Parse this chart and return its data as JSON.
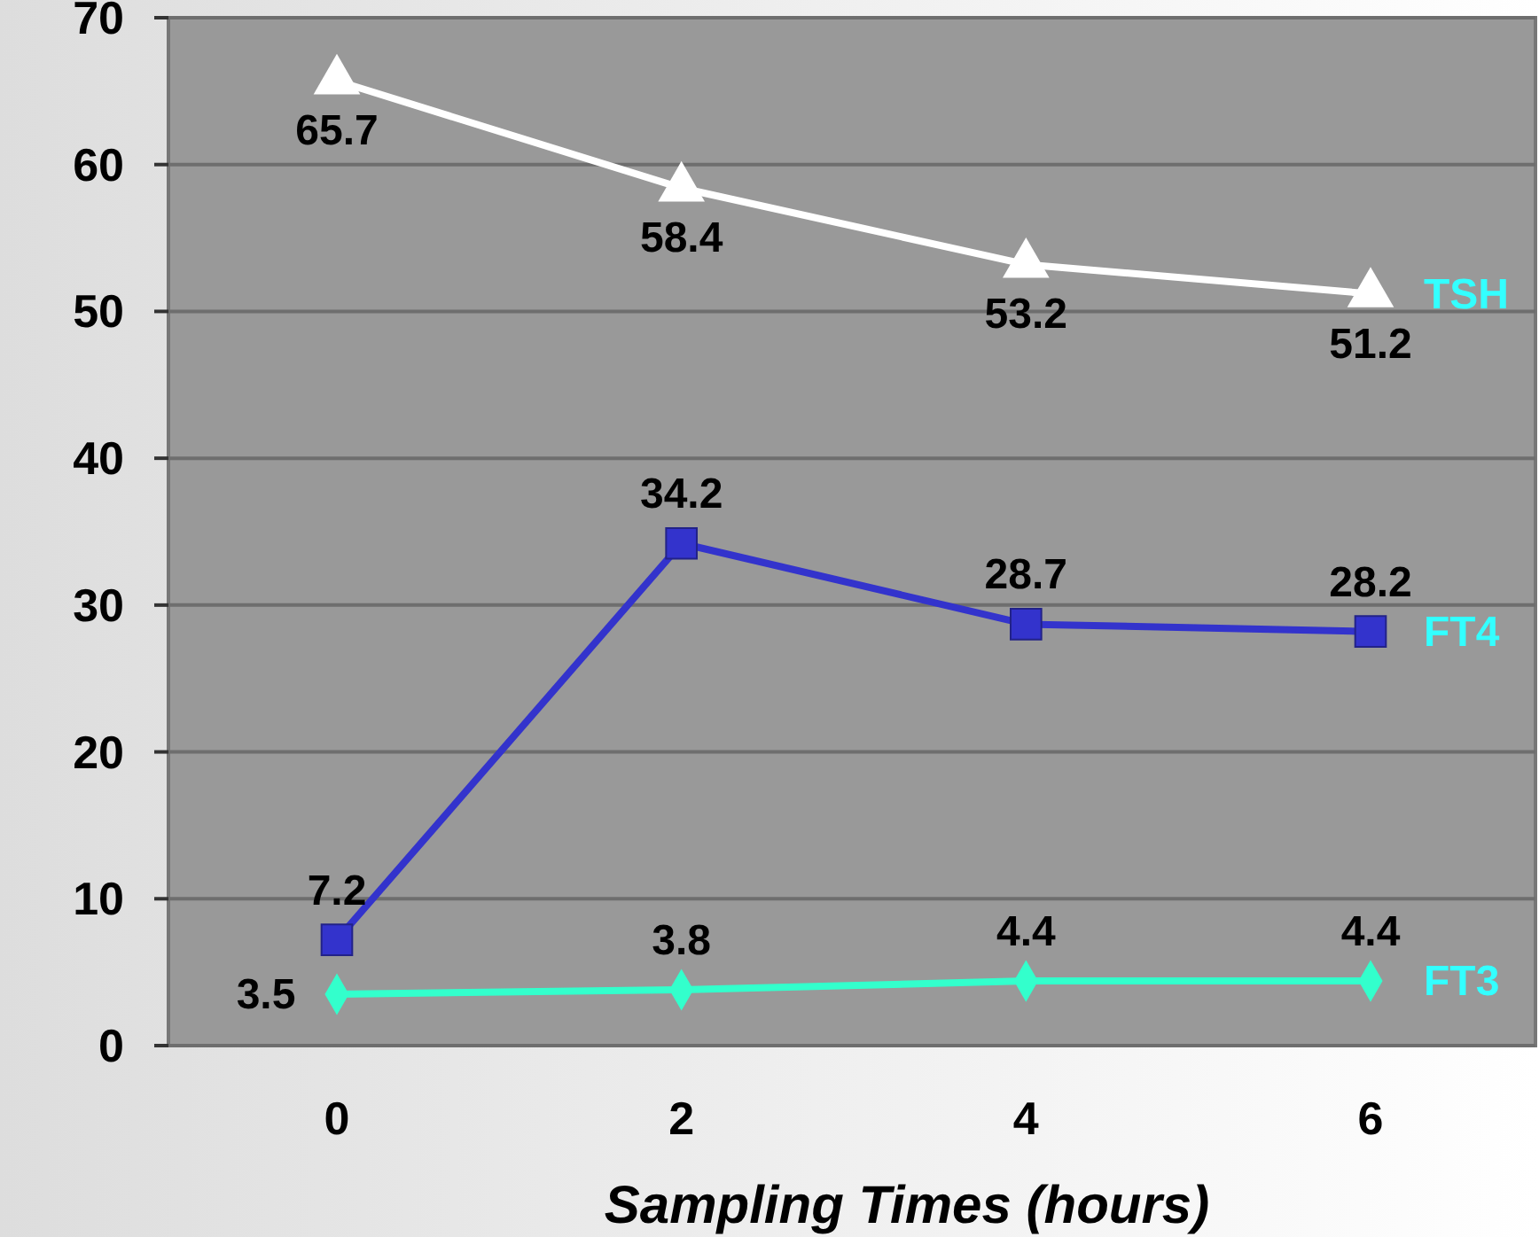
{
  "chart_data": {
    "type": "line",
    "xlabel": "Sampling Times (hours)",
    "categories": [
      "0",
      "2",
      "4",
      "6"
    ],
    "ylim": [
      0,
      70
    ],
    "yticks": [
      0,
      10,
      20,
      30,
      40,
      50,
      60,
      70
    ],
    "grid": "y",
    "data_labels": true,
    "series": [
      {
        "name": "TSH",
        "color": "#ffffff",
        "marker": "triangle",
        "values": [
          65.7,
          58.4,
          53.2,
          51.2
        ]
      },
      {
        "name": "FT4",
        "color": "#3333cc",
        "marker": "square",
        "values": [
          7.2,
          34.2,
          28.7,
          28.2
        ]
      },
      {
        "name": "FT3",
        "color": "#33ffcc",
        "marker": "diamond",
        "values": [
          3.5,
          3.8,
          4.4,
          4.4
        ]
      }
    ]
  }
}
